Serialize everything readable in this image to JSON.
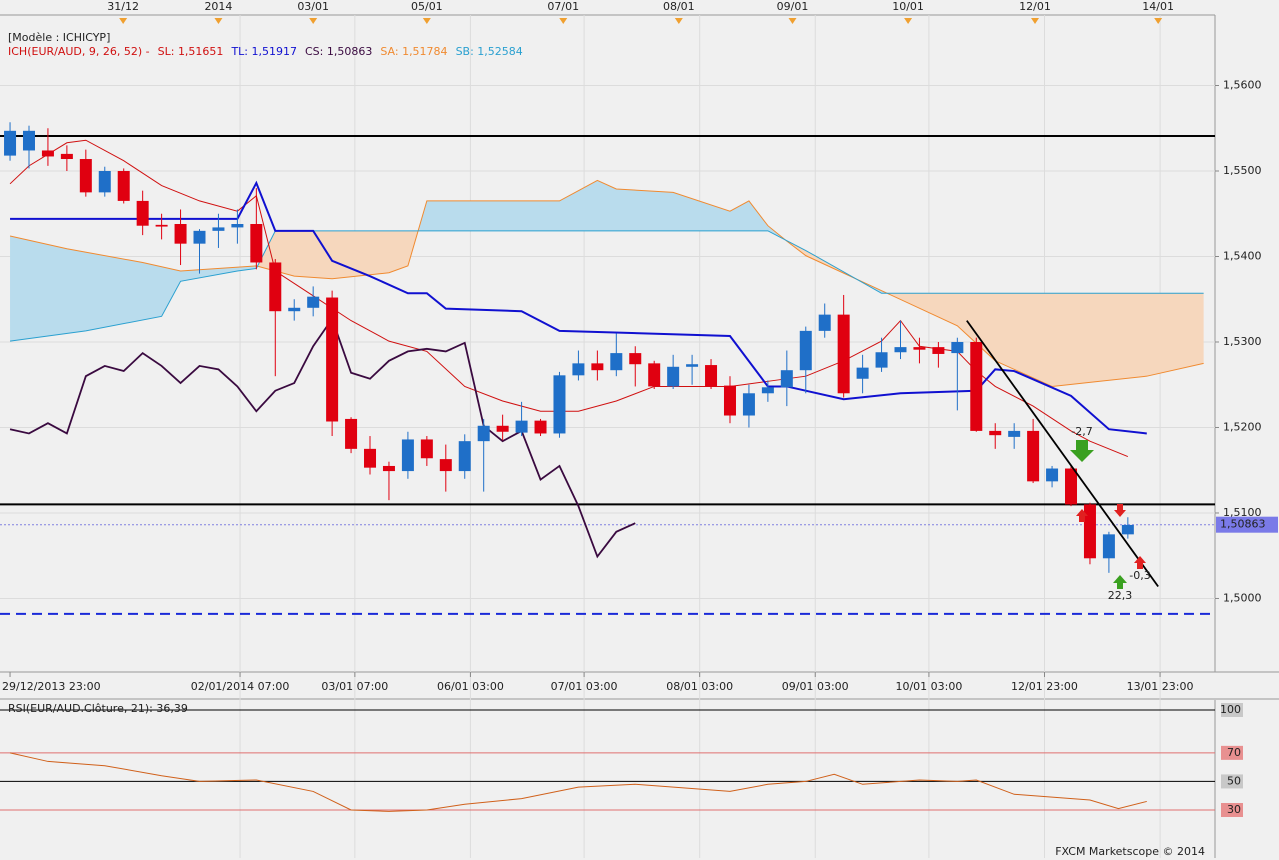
{
  "chart_data": [
    {
      "type": "candlestick",
      "model": "[Modèle : ICHICYP]",
      "legend": [
        {
          "text": "ICH(EUR/AUD, 9, 26, 52) -",
          "color": "#d01010"
        },
        {
          "text": "SL: 1,51651",
          "color": "#d01010"
        },
        {
          "text": "TL: 1,51917",
          "color": "#1010d0"
        },
        {
          "text": "CS: 1,50863",
          "color": "#3a0a40"
        },
        {
          "text": "SA: 1,51784",
          "color": "#f08a30"
        },
        {
          "text": "SB: 1,52584",
          "color": "#2aa0d0"
        }
      ],
      "up_color": "#1f6fc8",
      "down_color": "#e00010",
      "open": [
        1.5518,
        1.5524,
        1.5524,
        1.552,
        1.5514,
        1.5475,
        1.55,
        1.5465,
        1.5437,
        1.5438,
        1.5415,
        1.543,
        1.5434,
        1.5438,
        1.5393,
        1.5336,
        1.534,
        1.5352,
        1.521,
        1.5175,
        1.5155,
        1.5149,
        1.5186,
        1.5163,
        1.5149,
        1.5184,
        1.5202,
        1.5194,
        1.5208,
        1.5193,
        1.5261,
        1.5275,
        1.5267,
        1.5287,
        1.5275,
        1.5248,
        1.5271,
        1.5273,
        1.5249,
        1.5214,
        1.524,
        1.5247,
        1.5267,
        1.5313,
        1.5332,
        1.5257,
        1.527,
        1.5288,
        1.5294,
        1.5294,
        1.5287,
        1.53,
        1.5196,
        1.5189,
        1.5196,
        1.5137,
        1.5152,
        1.511,
        1.5047,
        1.5075
      ],
      "high": [
        1.5557,
        1.5553,
        1.555,
        1.553,
        1.5525,
        1.5505,
        1.5503,
        1.5477,
        1.545,
        1.5455,
        1.5432,
        1.545,
        1.5455,
        1.548,
        1.5397,
        1.535,
        1.5365,
        1.536,
        1.5212,
        1.519,
        1.516,
        1.5195,
        1.519,
        1.518,
        1.5192,
        1.521,
        1.5215,
        1.523,
        1.521,
        1.5265,
        1.529,
        1.529,
        1.531,
        1.5295,
        1.5278,
        1.5285,
        1.5285,
        1.528,
        1.526,
        1.525,
        1.5255,
        1.529,
        1.5318,
        1.5345,
        1.5355,
        1.5285,
        1.5305,
        1.5325,
        1.5305,
        1.53,
        1.5305,
        1.5305,
        1.5205,
        1.5205,
        1.521,
        1.5155,
        1.5155,
        1.5112,
        1.5078,
        1.5095
      ],
      "low": [
        1.5512,
        1.5503,
        1.5506,
        1.55,
        1.547,
        1.547,
        1.5462,
        1.5425,
        1.542,
        1.539,
        1.538,
        1.541,
        1.5415,
        1.5385,
        1.526,
        1.5325,
        1.533,
        1.519,
        1.517,
        1.5145,
        1.5115,
        1.514,
        1.5155,
        1.5125,
        1.514,
        1.5125,
        1.5185,
        1.519,
        1.519,
        1.5188,
        1.5255,
        1.5255,
        1.526,
        1.5248,
        1.5245,
        1.5245,
        1.525,
        1.5245,
        1.5205,
        1.52,
        1.523,
        1.5225,
        1.524,
        1.5305,
        1.5235,
        1.524,
        1.5265,
        1.528,
        1.5275,
        1.527,
        1.522,
        1.5195,
        1.5175,
        1.5175,
        1.5135,
        1.513,
        1.5108,
        1.504,
        1.503,
        1.507
      ],
      "close": [
        1.5547,
        1.5547,
        1.5517,
        1.5514,
        1.5475,
        1.55,
        1.5465,
        1.5436,
        1.5435,
        1.5415,
        1.543,
        1.5434,
        1.5438,
        1.5393,
        1.5336,
        1.534,
        1.5353,
        1.5207,
        1.5175,
        1.5153,
        1.5149,
        1.5186,
        1.5164,
        1.5149,
        1.5184,
        1.5202,
        1.5195,
        1.5208,
        1.5193,
        1.5261,
        1.5275,
        1.5267,
        1.5287,
        1.5274,
        1.5248,
        1.5271,
        1.5274,
        1.5248,
        1.5214,
        1.524,
        1.5247,
        1.5267,
        1.5313,
        1.5332,
        1.524,
        1.527,
        1.5288,
        1.5294,
        1.5291,
        1.5286,
        1.53,
        1.5196,
        1.5191,
        1.5196,
        1.5137,
        1.5152,
        1.511,
        1.5047,
        1.5075,
        1.5086
      ],
      "series": [
        {
          "name": "SA",
          "color": "#f08a30",
          "x": [
            0,
            3,
            7,
            9,
            13,
            15,
            17,
            20,
            21,
            22,
            29,
            30,
            31,
            32,
            35,
            38,
            39,
            40,
            41,
            42,
            46,
            50,
            52,
            55,
            60,
            63
          ],
          "values": [
            1.5424,
            1.5409,
            1.5393,
            1.5383,
            1.5389,
            1.5377,
            1.5374,
            1.5381,
            1.5389,
            1.5465,
            1.5465,
            1.5477,
            1.5489,
            1.5479,
            1.5475,
            1.5453,
            1.5465,
            1.5436,
            1.5418,
            1.5401,
            1.536,
            1.5319,
            1.5278,
            1.5248,
            1.526,
            1.5275
          ]
        },
        {
          "name": "SB",
          "color": "#2aa0d0",
          "x": [
            0,
            4,
            8,
            9,
            12,
            13,
            14,
            40,
            42,
            46,
            63
          ],
          "values": [
            1.5301,
            1.5313,
            1.533,
            1.5371,
            1.5383,
            1.5386,
            1.543,
            1.543,
            1.5407,
            1.5357,
            1.5357
          ]
        },
        {
          "name": "SL",
          "color": "#d01010",
          "x": [
            0,
            1,
            3,
            4,
            6,
            8,
            10,
            12,
            13,
            14,
            16,
            18,
            20,
            22,
            24,
            26,
            28,
            30,
            32,
            34,
            36,
            38,
            40,
            42,
            44,
            46,
            47,
            48,
            50,
            51,
            52,
            54,
            56,
            57,
            59
          ],
          "values": [
            1.5485,
            1.5506,
            1.5533,
            1.5536,
            1.5512,
            1.5483,
            1.5465,
            1.5453,
            1.5471,
            1.5383,
            1.5354,
            1.5325,
            1.5301,
            1.5289,
            1.5248,
            1.5231,
            1.5219,
            1.5219,
            1.5231,
            1.5248,
            1.5248,
            1.5248,
            1.5254,
            1.526,
            1.5278,
            1.5301,
            1.5325,
            1.5295,
            1.5289,
            1.5266,
            1.5248,
            1.5225,
            1.5196,
            1.5184,
            1.5166
          ]
        },
        {
          "name": "TL",
          "color": "#1010d0",
          "x": [
            0,
            12,
            13,
            14,
            16,
            17,
            19,
            21,
            22,
            23,
            27,
            29,
            38,
            40,
            41,
            44,
            47,
            51,
            52,
            53,
            56,
            58,
            60
          ],
          "values": [
            1.5444,
            1.5444,
            1.5486,
            1.543,
            1.543,
            1.5395,
            1.5377,
            1.5357,
            1.5357,
            1.5339,
            1.5336,
            1.5313,
            1.5307,
            1.5248,
            1.5248,
            1.5233,
            1.524,
            1.5243,
            1.5268,
            1.5266,
            1.5237,
            1.5198,
            1.5193
          ]
        },
        {
          "name": "CS",
          "color": "#3a0a40",
          "x": [
            0,
            1,
            2,
            3,
            4,
            5,
            6,
            7,
            8,
            9,
            10,
            11,
            12,
            13,
            14,
            15,
            16,
            17,
            18,
            19,
            20,
            21,
            22,
            23,
            24,
            25,
            26,
            27,
            28,
            29,
            30,
            31,
            32,
            33
          ],
          "values": [
            1.5198,
            1.5193,
            1.5205,
            1.5193,
            1.526,
            1.5272,
            1.5266,
            1.5287,
            1.5272,
            1.5252,
            1.5272,
            1.5268,
            1.5248,
            1.5219,
            1.5243,
            1.5252,
            1.5295,
            1.5327,
            1.5264,
            1.5257,
            1.5278,
            1.5289,
            1.5292,
            1.5289,
            1.5299,
            1.5202,
            1.5184,
            1.5196,
            1.5139,
            1.5155,
            1.5108,
            1.5049,
            1.5078,
            1.5088
          ]
        }
      ],
      "hlines": [
        {
          "value": 1.5541,
          "color": "#000000"
        },
        {
          "value": 1.511,
          "color": "#000000"
        },
        {
          "value": 1.4982,
          "color": "#1a2ad8",
          "dashed": true
        }
      ],
      "current_price": {
        "value": 1.50863,
        "label": "1,50863"
      },
      "trendline": {
        "x": [
          50.5,
          60.6
        ],
        "values": [
          1.5325,
          1.5014
        ]
      },
      "signals": [
        "-2,7",
        "-0,3",
        "22,3"
      ],
      "xlim": [
        -0.53,
        63.6
      ],
      "ylim": [
        1.4914,
        1.57
      ],
      "yticks": [
        {
          "value": 1.5,
          "label": "1,5000"
        },
        {
          "value": 1.51,
          "label": "1,5100"
        },
        {
          "value": 1.52,
          "label": "1,5200"
        },
        {
          "value": 1.53,
          "label": "1,5300"
        },
        {
          "value": 1.54,
          "label": "1,5400"
        },
        {
          "value": 1.55,
          "label": "1,5500"
        },
        {
          "value": 1.56,
          "label": "1,5600"
        }
      ],
      "xticks": [
        {
          "value": 0,
          "label": "29/12/2013 23:00"
        },
        {
          "value": 12.14,
          "label": "02/01/2014 07:00"
        },
        {
          "value": 18.2,
          "label": "03/01 07:00"
        },
        {
          "value": 24.3,
          "label": "06/01 03:00"
        },
        {
          "value": 30.3,
          "label": "07/01 03:00"
        },
        {
          "value": 36.4,
          "label": "08/01 03:00"
        },
        {
          "value": 42.5,
          "label": "09/01 03:00"
        },
        {
          "value": 48.5,
          "label": "10/01 03:00"
        },
        {
          "value": 54.6,
          "label": "12/01 23:00"
        },
        {
          "value": 60.7,
          "label": "13/01 23:00"
        }
      ],
      "x2ticks": [
        {
          "value": 5.97,
          "label": "31/12"
        },
        {
          "value": 11,
          "label": "2014"
        },
        {
          "value": 16,
          "label": "03/01"
        },
        {
          "value": 22,
          "label": "05/01"
        },
        {
          "value": 29.2,
          "label": "07/01"
        },
        {
          "value": 35.3,
          "label": "08/01"
        },
        {
          "value": 41.3,
          "label": "09/01"
        },
        {
          "value": 47.4,
          "label": "10/01"
        },
        {
          "value": 54.1,
          "label": "12/01"
        },
        {
          "value": 60.6,
          "label": "14/01"
        }
      ],
      "grid": true
    },
    {
      "type": "line",
      "title": "RSI(EUR/AUD.Clôture, 21): 36,39",
      "series": [
        {
          "name": "RSI",
          "color": "#d0601a",
          "x": [
            0,
            2,
            5,
            8,
            10,
            13,
            16,
            18,
            20,
            22,
            24,
            27,
            30,
            33,
            38,
            40,
            42,
            43.5,
            45,
            48,
            50,
            51,
            53,
            55,
            57,
            58.5,
            60
          ],
          "values": [
            70,
            64,
            61,
            54,
            50,
            51,
            43,
            30,
            29,
            30,
            34,
            38,
            46,
            48,
            43,
            48,
            50,
            55,
            48,
            51,
            50,
            51,
            41,
            39,
            37,
            31,
            36
          ]
        }
      ],
      "xlim": [
        -0.53,
        63.6
      ],
      "ylim": [
        -3.6,
        107
      ],
      "yticks": [
        100,
        70,
        50,
        30
      ],
      "level_colors": [
        "#000000",
        "#e07070",
        "#000000",
        "#e07070"
      ]
    },
    {
      "watermark": "FXCM Marketscope © 2014"
    }
  ]
}
